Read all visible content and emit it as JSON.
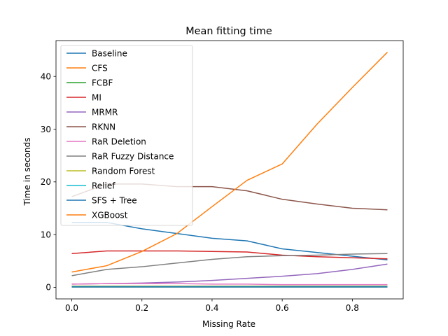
{
  "chart_data": {
    "type": "line",
    "title": "Mean fitting time",
    "xlabel": "Missing Rate",
    "ylabel": "Time in seconds",
    "xlim": [
      -0.045,
      0.945
    ],
    "ylim": [
      -2.2,
      46.8
    ],
    "xticks": [
      0.0,
      0.2,
      0.4,
      0.6,
      0.8
    ],
    "xtick_labels": [
      "0.0",
      "0.2",
      "0.4",
      "0.6",
      "0.8"
    ],
    "yticks": [
      0,
      10,
      20,
      30,
      40
    ],
    "ytick_labels": [
      "0",
      "10",
      "20",
      "30",
      "40"
    ],
    "grid": false,
    "legend_position": "upper-left",
    "x": [
      0.0,
      0.1,
      0.2,
      0.3,
      0.4,
      0.5,
      0.6,
      0.7,
      0.8,
      0.9
    ],
    "series": [
      {
        "name": "Baseline",
        "color": "#1f77b4",
        "values": [
          12.3,
          12.3,
          11.1,
          10.2,
          9.3,
          8.8,
          7.3,
          6.6,
          5.9,
          5.2
        ]
      },
      {
        "name": "CFS",
        "color": "#ff7f0e",
        "values": [
          0.2,
          0.2,
          0.2,
          0.2,
          0.2,
          0.2,
          0.2,
          0.2,
          0.2,
          0.2
        ]
      },
      {
        "name": "FCBF",
        "color": "#2ca02c",
        "values": [
          0.15,
          0.15,
          0.15,
          0.15,
          0.15,
          0.15,
          0.15,
          0.15,
          0.15,
          0.15
        ]
      },
      {
        "name": "MI",
        "color": "#d62728",
        "values": [
          6.4,
          6.9,
          6.9,
          6.9,
          6.8,
          6.7,
          6.1,
          5.8,
          5.6,
          5.4
        ]
      },
      {
        "name": "MRMR",
        "color": "#9467bd",
        "values": [
          0.6,
          0.7,
          0.8,
          1.0,
          1.3,
          1.7,
          2.1,
          2.6,
          3.4,
          4.4
        ]
      },
      {
        "name": "RKNN",
        "color": "#8c564b",
        "values": [
          17.2,
          19.6,
          19.6,
          19.1,
          19.1,
          18.3,
          16.7,
          15.8,
          15.0,
          14.7
        ]
      },
      {
        "name": "RaR Deletion",
        "color": "#e377c2",
        "values": [
          0.6,
          0.7,
          0.7,
          0.7,
          0.6,
          0.6,
          0.5,
          0.5,
          0.5,
          0.5
        ]
      },
      {
        "name": "RaR Fuzzy Distance",
        "color": "#7f7f7f",
        "values": [
          2.2,
          3.4,
          3.9,
          4.6,
          5.3,
          5.8,
          6.0,
          6.1,
          6.3,
          6.4
        ]
      },
      {
        "name": "Random Forest",
        "color": "#bcbd22",
        "values": [
          0.05,
          0.05,
          0.05,
          0.05,
          0.05,
          0.05,
          0.05,
          0.05,
          0.05,
          0.05
        ]
      },
      {
        "name": "Relief",
        "color": "#17becf",
        "values": [
          0.1,
          0.1,
          0.1,
          0.1,
          0.1,
          0.1,
          0.1,
          0.1,
          0.1,
          0.1
        ]
      },
      {
        "name": "SFS + Tree",
        "color": "#1f77b4",
        "values": [
          0.05,
          0.05,
          0.05,
          0.05,
          0.05,
          0.05,
          0.05,
          0.05,
          0.05,
          0.05
        ]
      },
      {
        "name": "XGBoost",
        "color": "#ff7f0e",
        "values": [
          2.9,
          4.1,
          6.8,
          10.2,
          15.3,
          20.3,
          23.4,
          31.0,
          37.9,
          44.6
        ]
      }
    ]
  }
}
